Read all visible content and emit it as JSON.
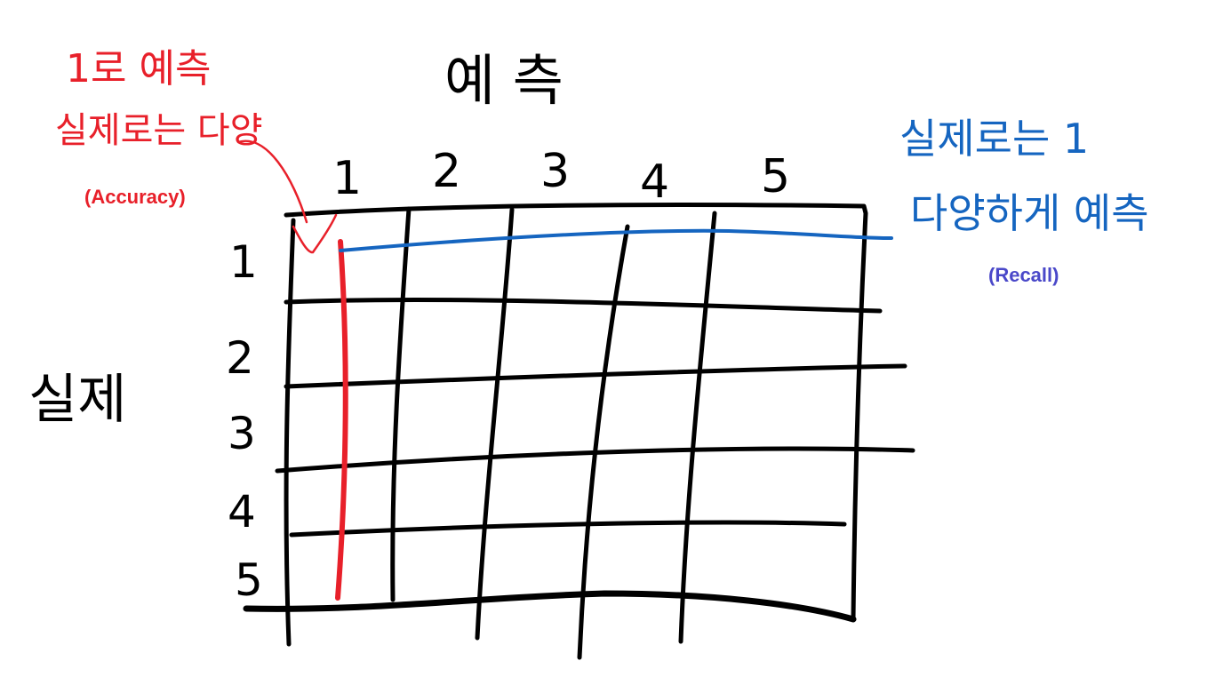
{
  "header_label": "예 측",
  "side_label": "실제",
  "predicted_classes": [
    "1",
    "2",
    "3",
    "4",
    "5"
  ],
  "actual_classes": [
    "1",
    "2",
    "3",
    "4",
    "5"
  ],
  "red_note": {
    "line1": "1로 예측",
    "line2": "실제로는 다양",
    "tag": "(Accuracy)",
    "color": "#e8202a",
    "tag_color": "#e8202a"
  },
  "blue_note": {
    "line1": "실제로는 1",
    "line2": "다양하게 예측",
    "tag": "(Recall)",
    "color": "#1565c0",
    "tag_color": "#4a48c9"
  },
  "colors": {
    "grid": "#000000",
    "red_mark": "#e8202a",
    "blue_mark": "#1565c0"
  }
}
